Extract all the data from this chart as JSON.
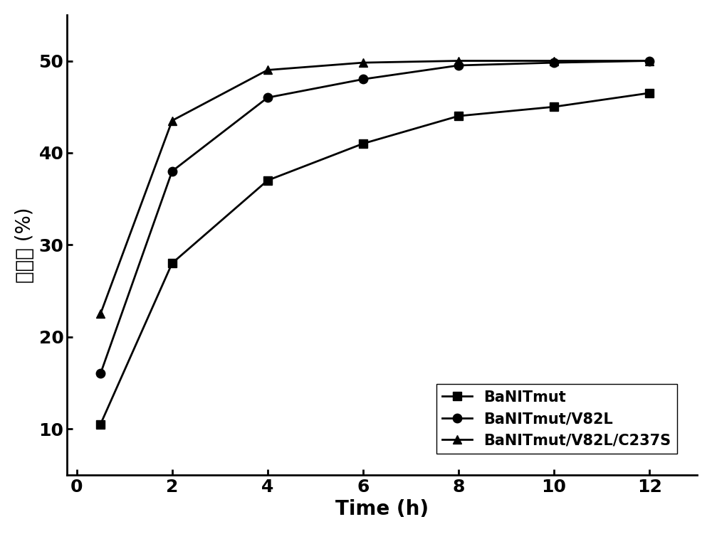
{
  "x": [
    0.5,
    2,
    4,
    6,
    8,
    10,
    12
  ],
  "series": [
    {
      "label": "BaNITmut",
      "y": [
        10.5,
        28,
        37,
        41,
        44,
        45,
        46.5
      ],
      "marker": "s",
      "color": "#000000"
    },
    {
      "label": "BaNITmut/V82L",
      "y": [
        16,
        38,
        46,
        48,
        49.5,
        49.8,
        50
      ],
      "marker": "o",
      "color": "#000000"
    },
    {
      "label": "BaNITmut/V82L/C237S",
      "y": [
        22.5,
        43.5,
        49,
        49.8,
        50,
        50,
        50
      ],
      "marker": "^",
      "color": "#000000"
    }
  ],
  "xlabel": "Time (h)",
  "ylabel": "转化率 (%)",
  "xlim": [
    -0.2,
    13
  ],
  "ylim": [
    5,
    55
  ],
  "yticks": [
    10,
    20,
    30,
    40,
    50
  ],
  "xticks": [
    0,
    2,
    4,
    6,
    8,
    10,
    12
  ],
  "legend_loc": "lower right",
  "linewidth": 2.0,
  "markersize": 9,
  "background_color": "#ffffff",
  "tick_fontsize": 18,
  "label_fontsize": 20,
  "legend_fontsize": 15
}
